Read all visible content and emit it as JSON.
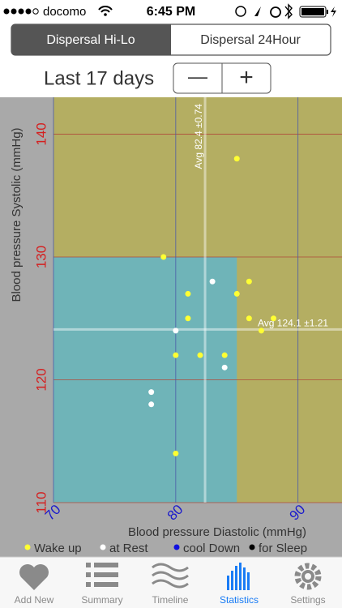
{
  "status_bar": {
    "carrier": "docomo",
    "time": "6:45 PM"
  },
  "segments": [
    "Dispersal Hi-Lo",
    "Dispersal 24Hour"
  ],
  "period": "Last 17 days",
  "stepper": [
    "—",
    "+"
  ],
  "chart_data": {
    "type": "scatter",
    "xlabel": "Blood pressure Diastolic (mmHg)",
    "ylabel": "Blood pressure Systolic (mmHg)",
    "xlim": [
      70,
      93.6
    ],
    "ylim": [
      110,
      143
    ],
    "xticks": [
      70,
      80,
      90
    ],
    "yticks": [
      110,
      120,
      130,
      140
    ],
    "xtick_color": "#1a1acc",
    "ytick_color": "#d42020",
    "grid": true,
    "background": "#b4ae62",
    "regions": [
      {
        "x": [
          70,
          85
        ],
        "y": [
          110,
          130
        ],
        "color": "#6fb4b8"
      }
    ],
    "averages": [
      {
        "axis": "x",
        "value": 82.4,
        "label": "Avg 82.4 ±0.74"
      },
      {
        "axis": "y",
        "value": 124.1,
        "label": "Avg 124.1 ±1.21"
      }
    ],
    "series": [
      {
        "name": "Wake up",
        "color": "#ffff33",
        "x": [
          85,
          79,
          81,
          85,
          86,
          81,
          86,
          88,
          87,
          80,
          82,
          84,
          80
        ],
        "values": [
          138,
          130,
          127,
          127,
          128,
          125,
          125,
          125,
          124,
          122,
          122,
          122,
          114
        ]
      },
      {
        "name": "at Rest",
        "color": "#ffffff",
        "x": [
          83,
          80,
          84,
          78,
          78
        ],
        "values": [
          128,
          124,
          121,
          119,
          118
        ]
      },
      {
        "name": "cool Down",
        "color": "#1010e0",
        "x": [],
        "values": []
      },
      {
        "name": "for Sleep",
        "color": "#000000",
        "x": [],
        "values": []
      }
    ]
  },
  "tab_bar": {
    "items": [
      "Add New",
      "Summary",
      "Timeline",
      "Statistics",
      "Settings"
    ],
    "selected": 3
  }
}
